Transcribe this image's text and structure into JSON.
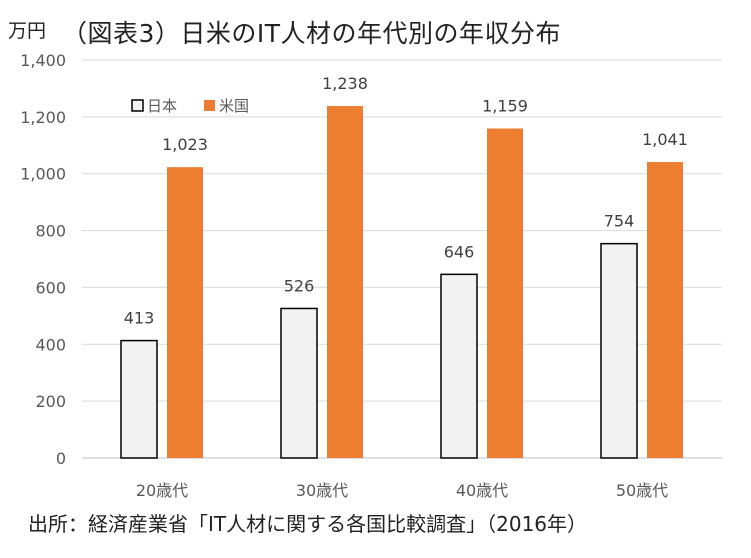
{
  "chart_data": {
    "type": "bar",
    "title": "（図表3）日米のIT人材の年代別の年収分布",
    "ylabel": "万円",
    "xlabel": "",
    "categories": [
      "20歳代",
      "30歳代",
      "40歳代",
      "50歳代"
    ],
    "series": [
      {
        "name": "日本",
        "values": [
          413,
          526,
          646,
          754
        ],
        "color": "#f2f2f2",
        "stroke": "#000000"
      },
      {
        "name": "米国",
        "values": [
          1023,
          1238,
          1159,
          1041
        ],
        "color": "#ed7d31"
      }
    ],
    "ylim": [
      0,
      1400
    ],
    "yticks": [
      0,
      200,
      400,
      600,
      800,
      1000,
      1200,
      1400
    ],
    "ytick_labels": [
      "0",
      "200",
      "400",
      "600",
      "800",
      "1,000",
      "1,200",
      "1,400"
    ],
    "data_labels": [
      [
        "413",
        "526",
        "646",
        "754"
      ],
      [
        "1,023",
        "1,238",
        "1,159",
        "1,041"
      ]
    ],
    "grid": true,
    "legend": "top-left"
  },
  "source": "出所：経済産業省「IT人材に関する各国比較調査」（2016年）"
}
